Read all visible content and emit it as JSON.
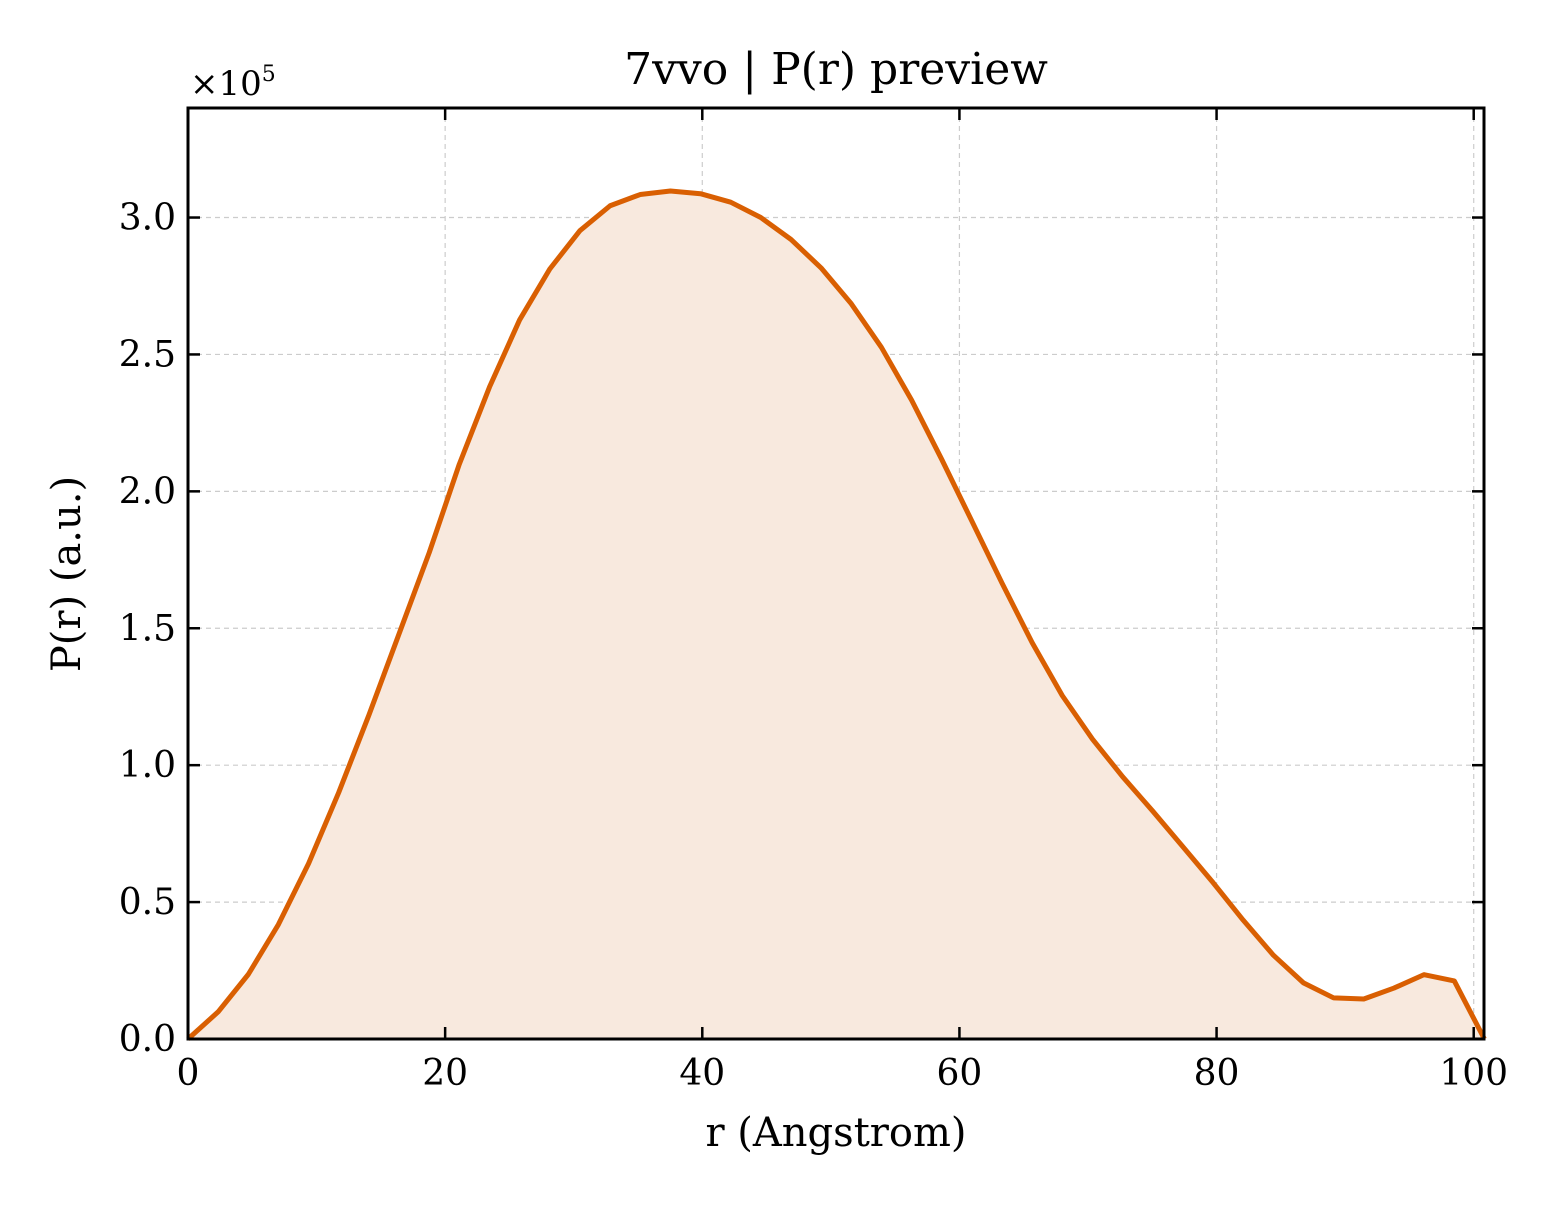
{
  "chart_data": {
    "type": "area",
    "title": "7vvo | P(r) preview",
    "xlabel": "r (Angstrom)",
    "ylabel": "P(r) (a.u.)",
    "y_offset_label": "×10",
    "y_offset_exponent": "5",
    "xlim": [
      0,
      100.8
    ],
    "ylim": [
      0,
      3.4
    ],
    "y_scale_factor": 100000,
    "x_ticks": [
      0,
      20,
      40,
      60,
      80,
      100
    ],
    "x_tick_labels": [
      "0",
      "20",
      "40",
      "60",
      "80",
      "100"
    ],
    "y_ticks": [
      0,
      0.5,
      1.0,
      1.5,
      2.0,
      2.5,
      3.0
    ],
    "y_tick_labels": [
      "0.0",
      "0.5",
      "1.0",
      "1.5",
      "2.0",
      "2.5",
      "3.0"
    ],
    "grid": true,
    "legend": "none",
    "series": [
      {
        "color": "#d95f02",
        "fill_color": "#f8e9de",
        "x": [
          0,
          2.34,
          4.69,
          7.03,
          9.38,
          11.72,
          14.07,
          16.41,
          18.76,
          21.1,
          23.45,
          25.79,
          28.14,
          30.48,
          32.83,
          35.17,
          37.52,
          39.86,
          42.21,
          44.55,
          46.9,
          49.24,
          51.59,
          53.93,
          56.28,
          58.62,
          60.97,
          63.31,
          65.66,
          68.0,
          70.35,
          72.69,
          75.04,
          77.38,
          79.73,
          82.07,
          84.42,
          86.76,
          89.11,
          91.45,
          93.8,
          96.14,
          98.49,
          100.83
        ],
        "y": [
          0.0,
          0.099,
          0.236,
          0.418,
          0.641,
          0.9,
          1.183,
          1.479,
          1.776,
          2.099,
          2.381,
          2.626,
          2.812,
          2.952,
          3.043,
          3.084,
          3.097,
          3.087,
          3.056,
          3.0,
          2.92,
          2.816,
          2.685,
          2.526,
          2.333,
          2.117,
          1.891,
          1.665,
          1.447,
          1.254,
          1.095,
          0.958,
          0.832,
          0.702,
          0.571,
          0.434,
          0.306,
          0.205,
          0.15,
          0.146,
          0.186,
          0.235,
          0.212,
          0.0
        ]
      }
    ]
  }
}
